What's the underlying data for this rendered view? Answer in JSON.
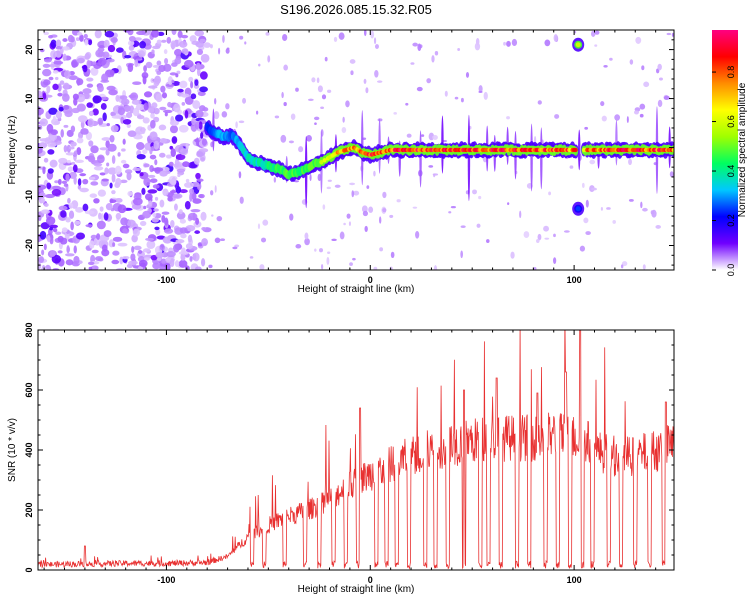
{
  "title": "S196.2026.085.15.32.R05",
  "chart_data": [
    {
      "type": "heatmap",
      "title": "S196.2026.085.15.32.R05",
      "xlabel": "Height of straight line (km)",
      "ylabel": "Frequency (Hz)",
      "xlim": [
        -163,
        149
      ],
      "ylim": [
        -25,
        24
      ],
      "xticks": [
        -100,
        0,
        100
      ],
      "xtick_labels": [
        "-100",
        "0",
        "100"
      ],
      "yticks": [
        -20,
        -10,
        0,
        10,
        20
      ],
      "ytick_labels": [
        "-20",
        "-10",
        "0",
        "10",
        "20"
      ],
      "colorbar": {
        "label": "Normalized spectral amplitude",
        "range": [
          0,
          0.97
        ],
        "ticks": [
          0.0,
          0.2,
          0.4,
          0.6,
          0.8
        ],
        "tick_labels": [
          "0.0",
          "0.2",
          "0.4",
          "0.6",
          "0.8"
        ],
        "colormap": [
          "#ffffff",
          "#7000ff",
          "#0000ff",
          "#00c8ff",
          "#00ff60",
          "#a0ff00",
          "#ffff00",
          "#ff8c00",
          "#ff0000",
          "#ff0080"
        ]
      },
      "ridge": {
        "description": "dominant frequency track vs height",
        "x": [
          -80,
          -76,
          -72,
          -68,
          -64,
          -60,
          -56,
          -52,
          -48,
          -44,
          -40,
          -36,
          -32,
          -28,
          -24,
          -20,
          -16,
          -12,
          -8,
          -4,
          0,
          10,
          20,
          30,
          40,
          50,
          60,
          70,
          80,
          90,
          100,
          104,
          110,
          120,
          130,
          140,
          149
        ],
        "y": [
          4,
          3,
          2,
          2.5,
          0.5,
          -2,
          -3,
          -3.5,
          -4,
          -4.5,
          -5.5,
          -5,
          -4.5,
          -3.5,
          -3,
          -2,
          -1,
          -0.5,
          0,
          -1,
          -1.5,
          -0.5,
          -0.5,
          -0.5,
          -0.5,
          -0.5,
          -0.5,
          -0.5,
          -0.5,
          -0.5,
          -0.5,
          -0.5,
          -0.5,
          -0.5,
          -0.5,
          -0.5,
          -0.5
        ],
        "amplitude": [
          0.25,
          0.3,
          0.35,
          0.3,
          0.35,
          0.4,
          0.4,
          0.45,
          0.45,
          0.5,
          0.55,
          0.5,
          0.5,
          0.55,
          0.6,
          0.7,
          0.8,
          0.85,
          0.9,
          0.9,
          0.95,
          0.97,
          0.97,
          0.97,
          0.97,
          0.97,
          0.97,
          0.97,
          0.97,
          0.97,
          0.9,
          0.85,
          0.9,
          0.95,
          0.97,
          0.95,
          0.9
        ]
      },
      "features": [
        {
          "x": 102,
          "y": 21,
          "amplitude": 0.6,
          "note": "isolated high-frequency blob"
        },
        {
          "x": 102,
          "y": -12.5,
          "amplitude": 0.25,
          "note": "weak low-frequency blob"
        }
      ],
      "noise_region_x": [
        -163,
        -80
      ]
    },
    {
      "type": "line",
      "xlabel": "Height of straight line (km)",
      "ylabel": "SNR (10 * v/v)",
      "xlim": [
        -163,
        149
      ],
      "ylim": [
        0,
        800
      ],
      "xticks": [
        -100,
        0,
        100
      ],
      "xtick_labels": [
        "-100",
        "0",
        "100"
      ],
      "yticks": [
        0,
        200,
        400,
        600,
        800
      ],
      "ytick_labels": [
        "0",
        "200",
        "400",
        "600",
        "800"
      ],
      "series": [
        {
          "name": "SNR",
          "color": "#e83030",
          "envelope": {
            "x": [
              -163,
              -140,
              -120,
              -100,
              -80,
              -70,
              -60,
              -50,
              -40,
              -30,
              -20,
              -10,
              0,
              10,
              20,
              30,
              40,
              50,
              60,
              70,
              80,
              90,
              100,
              105,
              110,
              120,
              130,
              140,
              149
            ],
            "y": [
              18,
              20,
              22,
              22,
              25,
              45,
              110,
              150,
              180,
              200,
              240,
              280,
              320,
              350,
              380,
              400,
              420,
              430,
              440,
              440,
              440,
              450,
              440,
              440,
              400,
              380,
              380,
              400,
              420
            ]
          },
          "dropouts_x": [
            -58,
            -52,
            -42,
            -32,
            -25,
            -18,
            -12,
            -6,
            3,
            8,
            13,
            19,
            27,
            32,
            38,
            46,
            54,
            58,
            64,
            72,
            78,
            86,
            92,
            98,
            104,
            109,
            117,
            123,
            130,
            137,
            144
          ],
          "spikes": [
            {
              "x": 103,
              "y": 800
            },
            {
              "x": 96,
              "y": 660
            },
            {
              "x": 62,
              "y": 640
            },
            {
              "x": 46,
              "y": 600
            },
            {
              "x": 82,
              "y": 590
            },
            {
              "x": 145,
              "y": 560
            },
            {
              "x": -5,
              "y": 540
            },
            {
              "x": -140,
              "y": 80
            }
          ]
        }
      ]
    }
  ]
}
